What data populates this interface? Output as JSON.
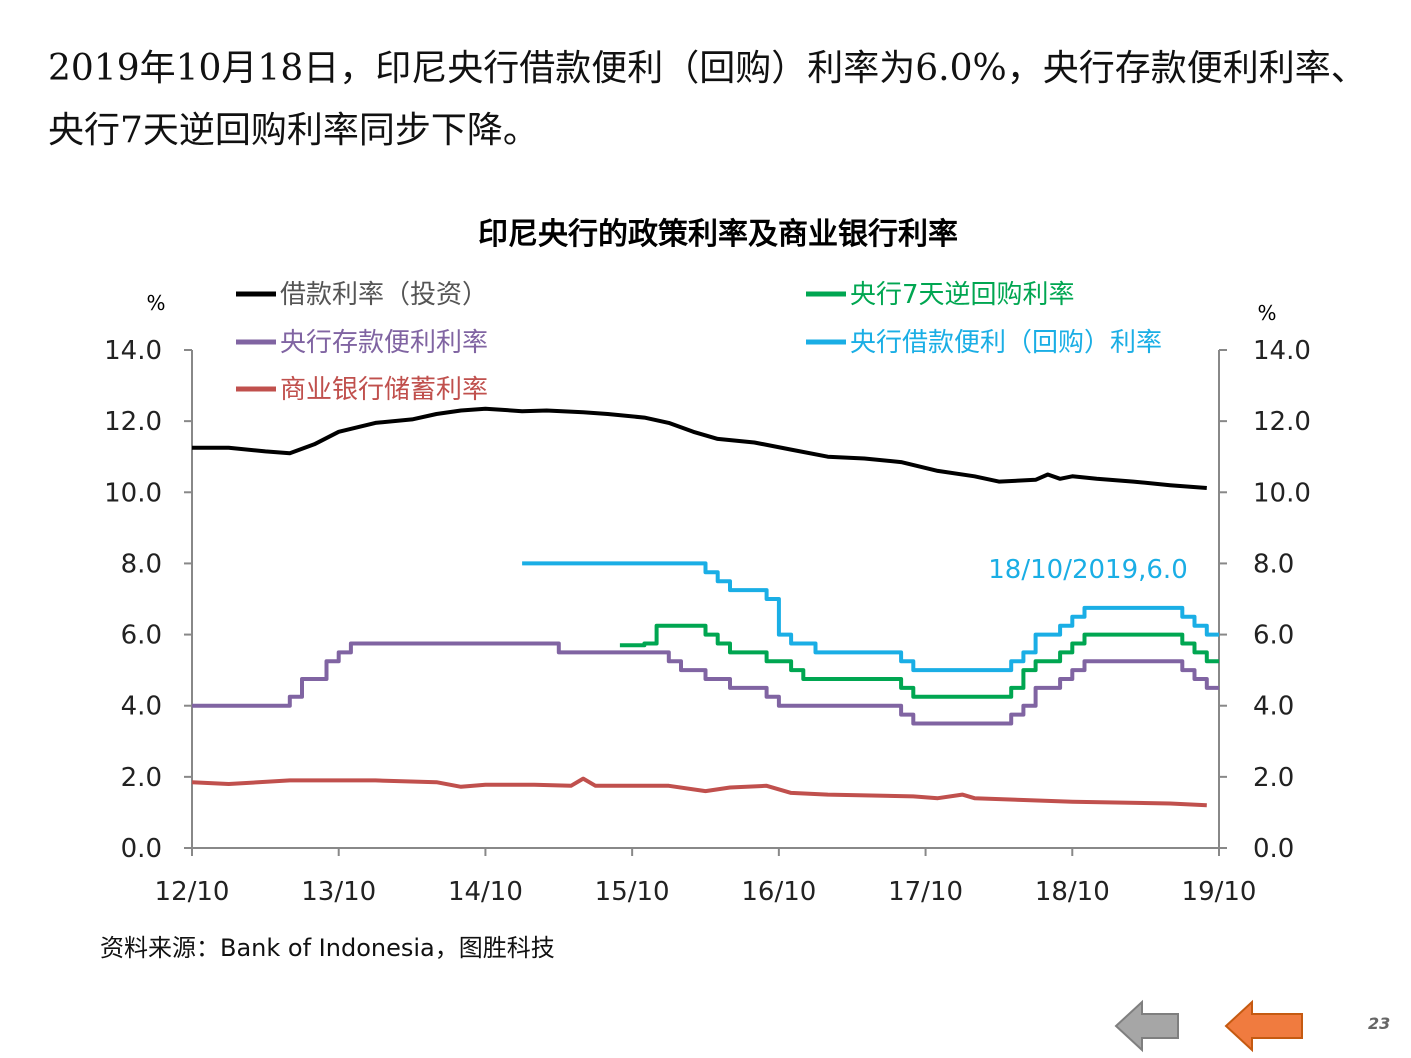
{
  "slide": {
    "headline": "2019年10月18日，印尼央行借款便利（回购）利率为6.0%，央行存款便利利率、央行7天逆回购利率同步下降。",
    "source": "资料来源：Bank of Indonesia，图胜科技",
    "page_number": "23",
    "nav": {
      "prev_color": "#a6a6a6",
      "next_color": "#f07b3f"
    }
  },
  "chart_data": {
    "type": "line",
    "title": "印尼央行的政策利率及商业银行利率",
    "ylabel_left": "%",
    "ylabel_right": "%",
    "ylim": [
      0,
      14
    ],
    "yticks": [
      "0.0",
      "2.0",
      "4.0",
      "6.0",
      "8.0",
      "10.0",
      "12.0",
      "14.0"
    ],
    "xlim": [
      "2012-10",
      "2019-10"
    ],
    "xticks": [
      "12/10",
      "13/10",
      "14/10",
      "15/10",
      "16/10",
      "17/10",
      "18/10",
      "19/10"
    ],
    "legend_placement": "top",
    "grid": false,
    "annotation": {
      "text": "18/10/2019,6.0",
      "x": "2019-10",
      "y": 6.0,
      "color": "#1aaee5"
    },
    "series": [
      {
        "name": "借款利率（投资）",
        "color": "#000000",
        "step": false,
        "points": [
          [
            "2012-10",
            11.25
          ],
          [
            "2013-01",
            11.25
          ],
          [
            "2013-04",
            11.15
          ],
          [
            "2013-06",
            11.1
          ],
          [
            "2013-08",
            11.35
          ],
          [
            "2013-10",
            11.7
          ],
          [
            "2014-01",
            11.95
          ],
          [
            "2014-04",
            12.05
          ],
          [
            "2014-06",
            12.2
          ],
          [
            "2014-08",
            12.3
          ],
          [
            "2014-10",
            12.35
          ],
          [
            "2015-01",
            12.28
          ],
          [
            "2015-03",
            12.3
          ],
          [
            "2015-06",
            12.25
          ],
          [
            "2015-08",
            12.2
          ],
          [
            "2015-11",
            12.1
          ],
          [
            "2016-01",
            11.95
          ],
          [
            "2016-03",
            11.7
          ],
          [
            "2016-05",
            11.5
          ],
          [
            "2016-08",
            11.4
          ],
          [
            "2016-11",
            11.2
          ],
          [
            "2017-02",
            11.0
          ],
          [
            "2017-05",
            10.95
          ],
          [
            "2017-08",
            10.85
          ],
          [
            "2017-11",
            10.6
          ],
          [
            "2018-02",
            10.45
          ],
          [
            "2018-04",
            10.3
          ],
          [
            "2018-07",
            10.35
          ],
          [
            "2018-08",
            10.5
          ],
          [
            "2018-09",
            10.38
          ],
          [
            "2018-10",
            10.45
          ],
          [
            "2018-12",
            10.38
          ],
          [
            "2019-03",
            10.3
          ],
          [
            "2019-06",
            10.2
          ],
          [
            "2019-09",
            10.12
          ]
        ]
      },
      {
        "name": "央行存款便利利率",
        "color": "#8064a2",
        "step": true,
        "points": [
          [
            "2012-10",
            4.0
          ],
          [
            "2013-06",
            4.25
          ],
          [
            "2013-07",
            4.75
          ],
          [
            "2013-09",
            5.25
          ],
          [
            "2013-10",
            5.5
          ],
          [
            "2013-11",
            5.75
          ],
          [
            "2015-04",
            5.5
          ],
          [
            "2016-01",
            5.25
          ],
          [
            "2016-02",
            5.0
          ],
          [
            "2016-04",
            4.75
          ],
          [
            "2016-06",
            4.5
          ],
          [
            "2016-09",
            4.25
          ],
          [
            "2016-10",
            4.0
          ],
          [
            "2017-08",
            3.75
          ],
          [
            "2017-09",
            3.5
          ],
          [
            "2018-05",
            3.75
          ],
          [
            "2018-06",
            4.0
          ],
          [
            "2018-07",
            4.5
          ],
          [
            "2018-09",
            4.75
          ],
          [
            "2018-10",
            5.0
          ],
          [
            "2018-11",
            5.25
          ],
          [
            "2019-07",
            5.0
          ],
          [
            "2019-08",
            4.75
          ],
          [
            "2019-09",
            4.5
          ]
        ]
      },
      {
        "name": "商业银行储蓄利率",
        "color": "#c0504d",
        "step": false,
        "points": [
          [
            "2012-10",
            1.85
          ],
          [
            "2013-01",
            1.8
          ],
          [
            "2013-06",
            1.9
          ],
          [
            "2014-01",
            1.9
          ],
          [
            "2014-06",
            1.85
          ],
          [
            "2014-08",
            1.72
          ],
          [
            "2014-10",
            1.78
          ],
          [
            "2015-02",
            1.78
          ],
          [
            "2015-05",
            1.75
          ],
          [
            "2015-06",
            1.95
          ],
          [
            "2015-07",
            1.75
          ],
          [
            "2016-01",
            1.75
          ],
          [
            "2016-04",
            1.6
          ],
          [
            "2016-06",
            1.7
          ],
          [
            "2016-09",
            1.75
          ],
          [
            "2016-11",
            1.55
          ],
          [
            "2017-02",
            1.5
          ],
          [
            "2017-09",
            1.45
          ],
          [
            "2017-11",
            1.4
          ],
          [
            "2018-01",
            1.5
          ],
          [
            "2018-02",
            1.4
          ],
          [
            "2018-06",
            1.35
          ],
          [
            "2018-10",
            1.3
          ],
          [
            "2019-06",
            1.25
          ],
          [
            "2019-09",
            1.2
          ]
        ]
      },
      {
        "name": "央行7天逆回购利率",
        "color": "#00a651",
        "step": true,
        "points": [
          [
            "2015-09",
            5.7
          ],
          [
            "2015-11",
            5.75
          ],
          [
            "2015-12",
            6.25
          ],
          [
            "2016-04",
            6.0
          ],
          [
            "2016-05",
            5.75
          ],
          [
            "2016-06",
            5.5
          ],
          [
            "2016-09",
            5.25
          ],
          [
            "2016-11",
            5.0
          ],
          [
            "2016-12",
            4.75
          ],
          [
            "2017-08",
            4.5
          ],
          [
            "2017-09",
            4.25
          ],
          [
            "2018-05",
            4.5
          ],
          [
            "2018-06",
            5.0
          ],
          [
            "2018-07",
            5.25
          ],
          [
            "2018-09",
            5.5
          ],
          [
            "2018-10",
            5.75
          ],
          [
            "2018-11",
            6.0
          ],
          [
            "2019-07",
            5.75
          ],
          [
            "2019-08",
            5.5
          ],
          [
            "2019-09",
            5.25
          ]
        ]
      },
      {
        "name": "央行借款便利（回购）利率",
        "color": "#1aaee5",
        "step": true,
        "points": [
          [
            "2015-01",
            8.0
          ],
          [
            "2016-04",
            7.75
          ],
          [
            "2016-05",
            7.5
          ],
          [
            "2016-06",
            7.25
          ],
          [
            "2016-09",
            7.0
          ],
          [
            "2016-10",
            6.0
          ],
          [
            "2016-11",
            5.75
          ],
          [
            "2017-01",
            5.5
          ],
          [
            "2017-08",
            5.25
          ],
          [
            "2017-09",
            5.0
          ],
          [
            "2018-05",
            5.25
          ],
          [
            "2018-06",
            5.5
          ],
          [
            "2018-07",
            6.0
          ],
          [
            "2018-09",
            6.25
          ],
          [
            "2018-10",
            6.5
          ],
          [
            "2018-11",
            6.75
          ],
          [
            "2019-07",
            6.5
          ],
          [
            "2019-08",
            6.25
          ],
          [
            "2019-09",
            6.0
          ]
        ]
      }
    ]
  }
}
